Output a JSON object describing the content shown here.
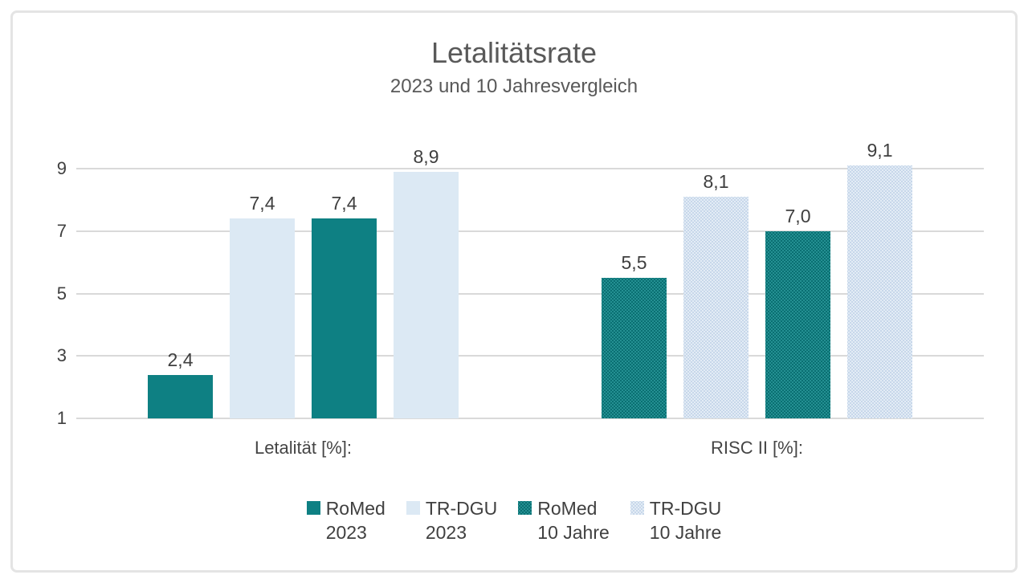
{
  "chart_data": {
    "type": "bar",
    "title": "Letalitätsrate",
    "subtitle": "2023 und 10 Jahresvergleich",
    "categories": [
      "Letalität [%]:",
      "RISC II [%]:"
    ],
    "series": [
      {
        "name": "RoMed 2023",
        "color_key": "teal",
        "values": [
          2.4,
          5.5
        ],
        "value_labels": [
          "2,4",
          "5,5"
        ]
      },
      {
        "name": "TR-DGU 2023",
        "color_key": "blue",
        "values": [
          7.4,
          8.1
        ],
        "value_labels": [
          "7,4",
          "8,1"
        ]
      },
      {
        "name": "RoMed 10 Jahre",
        "color_key": "teal",
        "values": [
          7.4,
          7.0
        ],
        "value_labels": [
          "7,4",
          "7,0"
        ]
      },
      {
        "name": "TR-DGU 10 Jahre",
        "color_key": "blue",
        "values": [
          8.9,
          9.1
        ],
        "value_labels": [
          "8,9",
          "9,1"
        ]
      }
    ],
    "category_fill_styles": [
      "solid",
      "dotted"
    ],
    "y_axis": {
      "min": 1,
      "max": 9,
      "ticks": [
        1,
        3,
        5,
        7,
        9
      ]
    },
    "grid": true,
    "legend_position": "bottom",
    "legend": [
      {
        "line1": "RoMed",
        "line2": "2023",
        "swatch": "teal-solid"
      },
      {
        "line1": "TR-DGU",
        "line2": "2023",
        "swatch": "blue-solid"
      },
      {
        "line1": "RoMed",
        "line2": "10 Jahre",
        "swatch": "teal-dotted"
      },
      {
        "line1": "TR-DGU",
        "line2": "10 Jahre",
        "swatch": "blue-dotted"
      }
    ],
    "colors": {
      "teal": "#0E8083",
      "light_blue": "#DCE9F4",
      "teal_pattern_dot": "#0A6F72",
      "blue_pattern_dot": "#C7D7EA",
      "gridline": "#D9D9D9",
      "label_text": "#404040",
      "title_text": "#595959",
      "frame_border": "#E4E4E4"
    }
  }
}
